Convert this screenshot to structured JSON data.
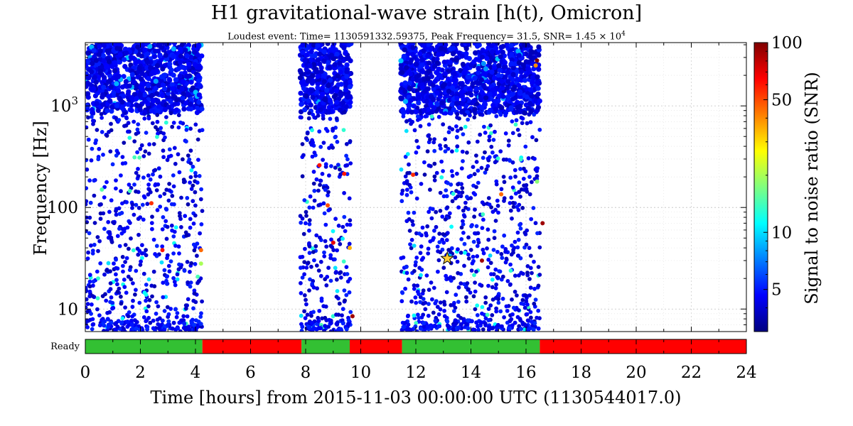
{
  "chart_data": {
    "type": "scatter",
    "title": "H1 gravitational-wave strain [h(t), Omicron]",
    "subtitle_prefix": "Loudest event: Time= 1130591332.59375, Peak Frequency= 31.5, SNR= 1.45 × 10",
    "subtitle_exp": "4",
    "xlabel": "Time [hours] from 2015-11-03 00:00:00 UTC (1130544017.0)",
    "ylabel": "Frequency [Hz]",
    "colorbar_label": "Signal to noise ratio (SNR)",
    "x_unit": "hours",
    "xlim": [
      0,
      24
    ],
    "ylim": [
      6,
      4200
    ],
    "y_scale": "log",
    "x_ticks": [
      "0",
      "2",
      "4",
      "6",
      "8",
      "10",
      "12",
      "14",
      "16",
      "18",
      "20",
      "22",
      "24"
    ],
    "y_ticks": [
      {
        "value": 10,
        "label": "10"
      },
      {
        "value": 100,
        "label": "100"
      },
      {
        "value": 1000,
        "label": "10",
        "exp": "3"
      }
    ],
    "colorbar_ticks": [
      {
        "value": 5,
        "label": "5"
      },
      {
        "value": 10,
        "label": "10"
      },
      {
        "value": 50,
        "label": "50"
      },
      {
        "value": 100,
        "label": "100"
      }
    ],
    "colorbar_range": [
      3,
      100
    ],
    "colormap": "jet",
    "grid": true,
    "loudest_event": {
      "time_hours": 13.14,
      "frequency": 31.5,
      "snr": 14500,
      "marker": "star",
      "color": "#ffcc33"
    },
    "segments": [
      {
        "start": 0.0,
        "end": 4.25
      },
      {
        "start": 7.8,
        "end": 9.65
      },
      {
        "start": 11.45,
        "end": 16.5
      }
    ],
    "notable_points": [
      {
        "t": 16.4,
        "f": 2800,
        "snr": 100
      },
      {
        "t": 16.35,
        "f": 2500,
        "snr": 40
      },
      {
        "t": 8.5,
        "f": 260,
        "snr": 60
      },
      {
        "t": 8.8,
        "f": 105,
        "snr": 50
      },
      {
        "t": 9.4,
        "f": 215,
        "snr": 60
      },
      {
        "t": 9.0,
        "f": 45,
        "snr": 70
      },
      {
        "t": 9.6,
        "f": 40,
        "snr": 35
      },
      {
        "t": 9.7,
        "f": 8.5,
        "snr": 90
      },
      {
        "t": 2.4,
        "f": 110,
        "snr": 55
      },
      {
        "t": 2.8,
        "f": 38,
        "snr": 60
      },
      {
        "t": 4.2,
        "f": 38,
        "snr": 45
      },
      {
        "t": 11.9,
        "f": 210,
        "snr": 55
      },
      {
        "t": 14.4,
        "f": 30,
        "snr": 90
      },
      {
        "t": 16.6,
        "f": 70,
        "snr": 90
      },
      {
        "t": 15.1,
        "f": 135,
        "snr": 45
      },
      {
        "t": 4.2,
        "f": 28,
        "snr": 20
      },
      {
        "t": 0.6,
        "f": 150,
        "snr": 15
      },
      {
        "t": 16.4,
        "f": 180,
        "snr": 18
      }
    ],
    "state_bar": {
      "label": "Ready",
      "on_color": "#33c033",
      "off_color": "#ff0000",
      "segments": [
        {
          "start": 0.0,
          "end": 4.25,
          "state": "on"
        },
        {
          "start": 4.25,
          "end": 7.85,
          "state": "off"
        },
        {
          "start": 7.85,
          "end": 9.6,
          "state": "on"
        },
        {
          "start": 9.6,
          "end": 11.5,
          "state": "off"
        },
        {
          "start": 11.5,
          "end": 16.5,
          "state": "on"
        },
        {
          "start": 16.5,
          "end": 24.0,
          "state": "off"
        }
      ]
    }
  }
}
